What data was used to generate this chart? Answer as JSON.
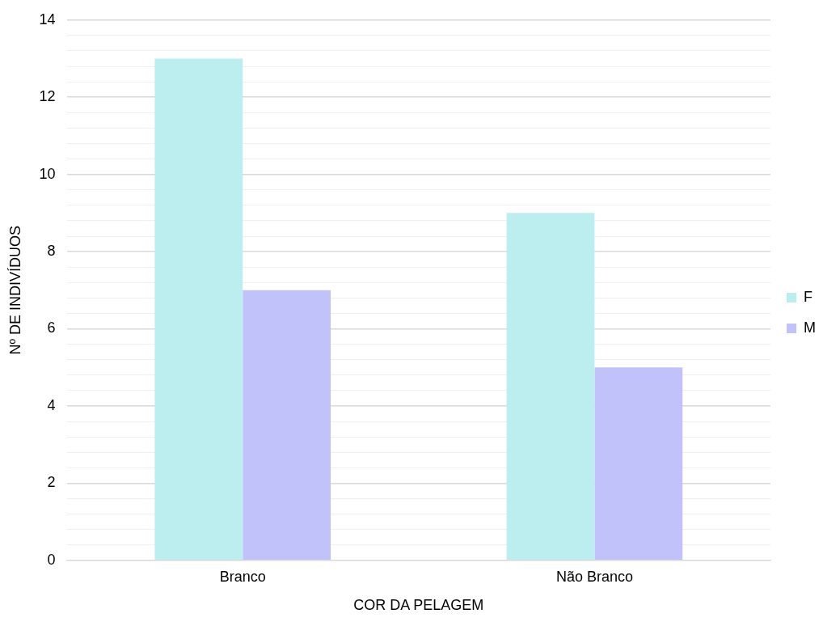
{
  "chart_data": {
    "type": "bar",
    "xlabel": "COR DA PELAGEM",
    "ylabel": "Nº DE INDIVÍDUOS",
    "categories": [
      "Branco",
      "Não Branco"
    ],
    "series": [
      {
        "name": "F",
        "color": "#bdeeef",
        "values": [
          13,
          9
        ]
      },
      {
        "name": "M",
        "color": "#c2c2fb",
        "values": [
          7,
          5
        ]
      }
    ],
    "ylim": [
      0,
      14
    ],
    "yticks": [
      0,
      {
        "value": 0.4,
        "label": null
      },
      {
        "value": 0.8,
        "label": null
      },
      {
        "value": 1.2,
        "label": null
      },
      {
        "value": 1.6,
        "label": null
      },
      2,
      {
        "value": 2.4,
        "label": null
      },
      {
        "value": 2.8,
        "label": null
      },
      {
        "value": 3.2,
        "label": null
      },
      {
        "value": 3.6,
        "label": null
      },
      4,
      {
        "value": 4.4,
        "label": null
      },
      {
        "value": 4.8,
        "label": null
      },
      {
        "value": 5.2,
        "label": null
      },
      {
        "value": 5.6,
        "label": null
      },
      6,
      {
        "value": 6.4,
        "label": null
      },
      {
        "value": 6.8,
        "label": null
      },
      {
        "value": 7.2,
        "label": null
      },
      {
        "value": 7.6,
        "label": null
      },
      8,
      {
        "value": 8.4,
        "label": null
      },
      {
        "value": 8.8,
        "label": null
      },
      {
        "value": 9.2,
        "label": null
      },
      {
        "value": 9.6,
        "label": null
      },
      10,
      {
        "value": 10.4,
        "label": null
      },
      {
        "value": 10.8,
        "label": null
      },
      {
        "value": 11.2,
        "label": null
      },
      {
        "value": 11.6,
        "label": null
      },
      12,
      {
        "value": 12.4,
        "label": null
      },
      {
        "value": 12.8,
        "label": null
      },
      {
        "value": 13.2,
        "label": null
      },
      {
        "value": 13.6,
        "label": null
      },
      14
    ],
    "grid": "y",
    "legend": "right"
  }
}
